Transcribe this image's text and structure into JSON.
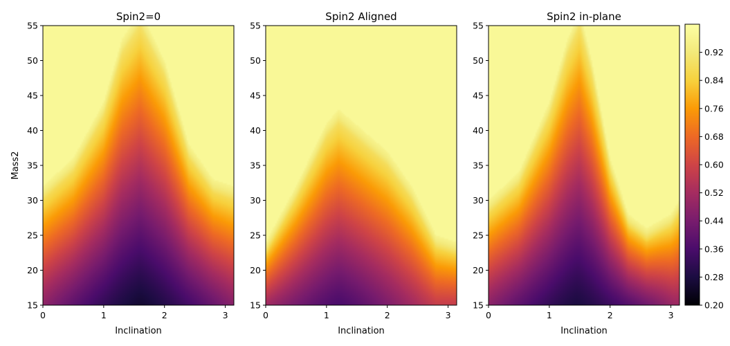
{
  "chart_data": [
    {
      "type": "heatmap",
      "title": "Spin2=0",
      "xlabel": "Inclination",
      "ylabel": "Mass2",
      "xlim": [
        0,
        3.14159
      ],
      "ylim": [
        15,
        55
      ],
      "xticks": [
        "0",
        "1",
        "2",
        "3"
      ],
      "yticks": [
        "15",
        "20",
        "25",
        "30",
        "35",
        "40",
        "45",
        "50",
        "55"
      ],
      "colormap": "inferno",
      "color_range": [
        0.2,
        1.0
      ],
      "description_points": {
        "transition_mass_at_inclination": [
          [
            0,
            32
          ],
          [
            0.5,
            36
          ],
          [
            1.0,
            44
          ],
          [
            1.3,
            53
          ],
          [
            1.6,
            57
          ],
          [
            2.0,
            50
          ],
          [
            2.4,
            38
          ],
          [
            2.8,
            33
          ],
          [
            3.14,
            32
          ]
        ],
        "min_value": 0.26,
        "min_location": [
          1.6,
          15
        ]
      }
    },
    {
      "type": "heatmap",
      "title": "Spin2 Aligned",
      "xlabel": "Inclination",
      "ylabel": "",
      "xlim": [
        0,
        3.14159
      ],
      "ylim": [
        15,
        55
      ],
      "xticks": [
        "0",
        "1",
        "2",
        "3"
      ],
      "yticks": [
        "15",
        "20",
        "25",
        "30",
        "35",
        "40",
        "45",
        "50",
        "55"
      ],
      "colormap": "inferno",
      "color_range": [
        0.2,
        1.0
      ],
      "description_points": {
        "transition_mass_at_inclination": [
          [
            0,
            24
          ],
          [
            0.5,
            32
          ],
          [
            1.0,
            41
          ],
          [
            1.2,
            43
          ],
          [
            1.6,
            40
          ],
          [
            2.0,
            37
          ],
          [
            2.4,
            32
          ],
          [
            2.8,
            25
          ],
          [
            3.14,
            24
          ]
        ],
        "min_value": 0.36,
        "min_location": [
          1.2,
          15
        ]
      }
    },
    {
      "type": "heatmap",
      "title": "Spin2 in-plane",
      "xlabel": "Inclination",
      "ylabel": "",
      "xlim": [
        0,
        3.14159
      ],
      "ylim": [
        15,
        55
      ],
      "xticks": [
        "0",
        "1",
        "2",
        "3"
      ],
      "yticks": [
        "15",
        "20",
        "25",
        "30",
        "35",
        "40",
        "45",
        "50",
        "55"
      ],
      "colormap": "inferno",
      "color_range": [
        0.2,
        1.0
      ],
      "description_points": {
        "transition_mass_at_inclination": [
          [
            0,
            30
          ],
          [
            0.5,
            34
          ],
          [
            1.0,
            44
          ],
          [
            1.3,
            53
          ],
          [
            1.5,
            57
          ],
          [
            1.7,
            50
          ],
          [
            2.0,
            36
          ],
          [
            2.3,
            28
          ],
          [
            2.6,
            26
          ],
          [
            3.0,
            28
          ],
          [
            3.14,
            30
          ]
        ],
        "min_value": 0.28,
        "min_location": [
          1.45,
          15
        ]
      }
    }
  ],
  "colorbar": {
    "ticks": [
      "0.20",
      "0.28",
      "0.36",
      "0.44",
      "0.52",
      "0.60",
      "0.68",
      "0.76",
      "0.84",
      "0.92"
    ],
    "range": [
      0.2,
      1.0
    ]
  }
}
